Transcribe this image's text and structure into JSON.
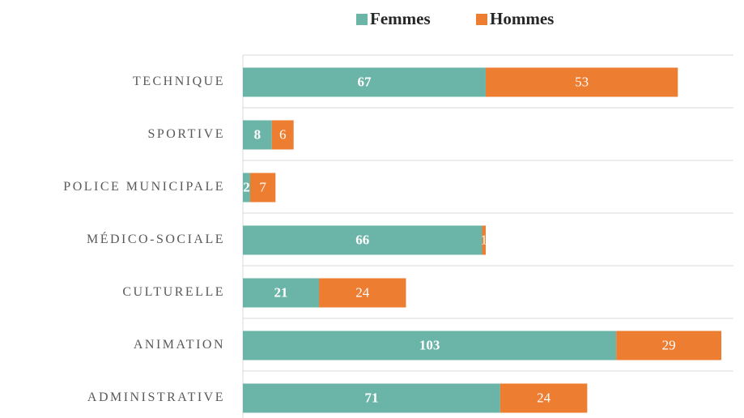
{
  "chart_data": {
    "type": "stacked_bar_horizontal",
    "categories": [
      "TECHNIQUE",
      "SPORTIVE",
      "POLICE MUNICIPALE",
      "MÉDICO-SOCIALE",
      "CULTURELLE",
      "ANIMATION",
      "ADMINISTRATIVE"
    ],
    "series": [
      {
        "name": "Femmes",
        "color": "#6bb5a8",
        "values": [
          67,
          8,
          2,
          66,
          21,
          103,
          71
        ]
      },
      {
        "name": "Hommes",
        "color": "#ed7d31",
        "values": [
          53,
          6,
          7,
          1,
          24,
          29,
          24
        ]
      }
    ],
    "legend": "top"
  }
}
